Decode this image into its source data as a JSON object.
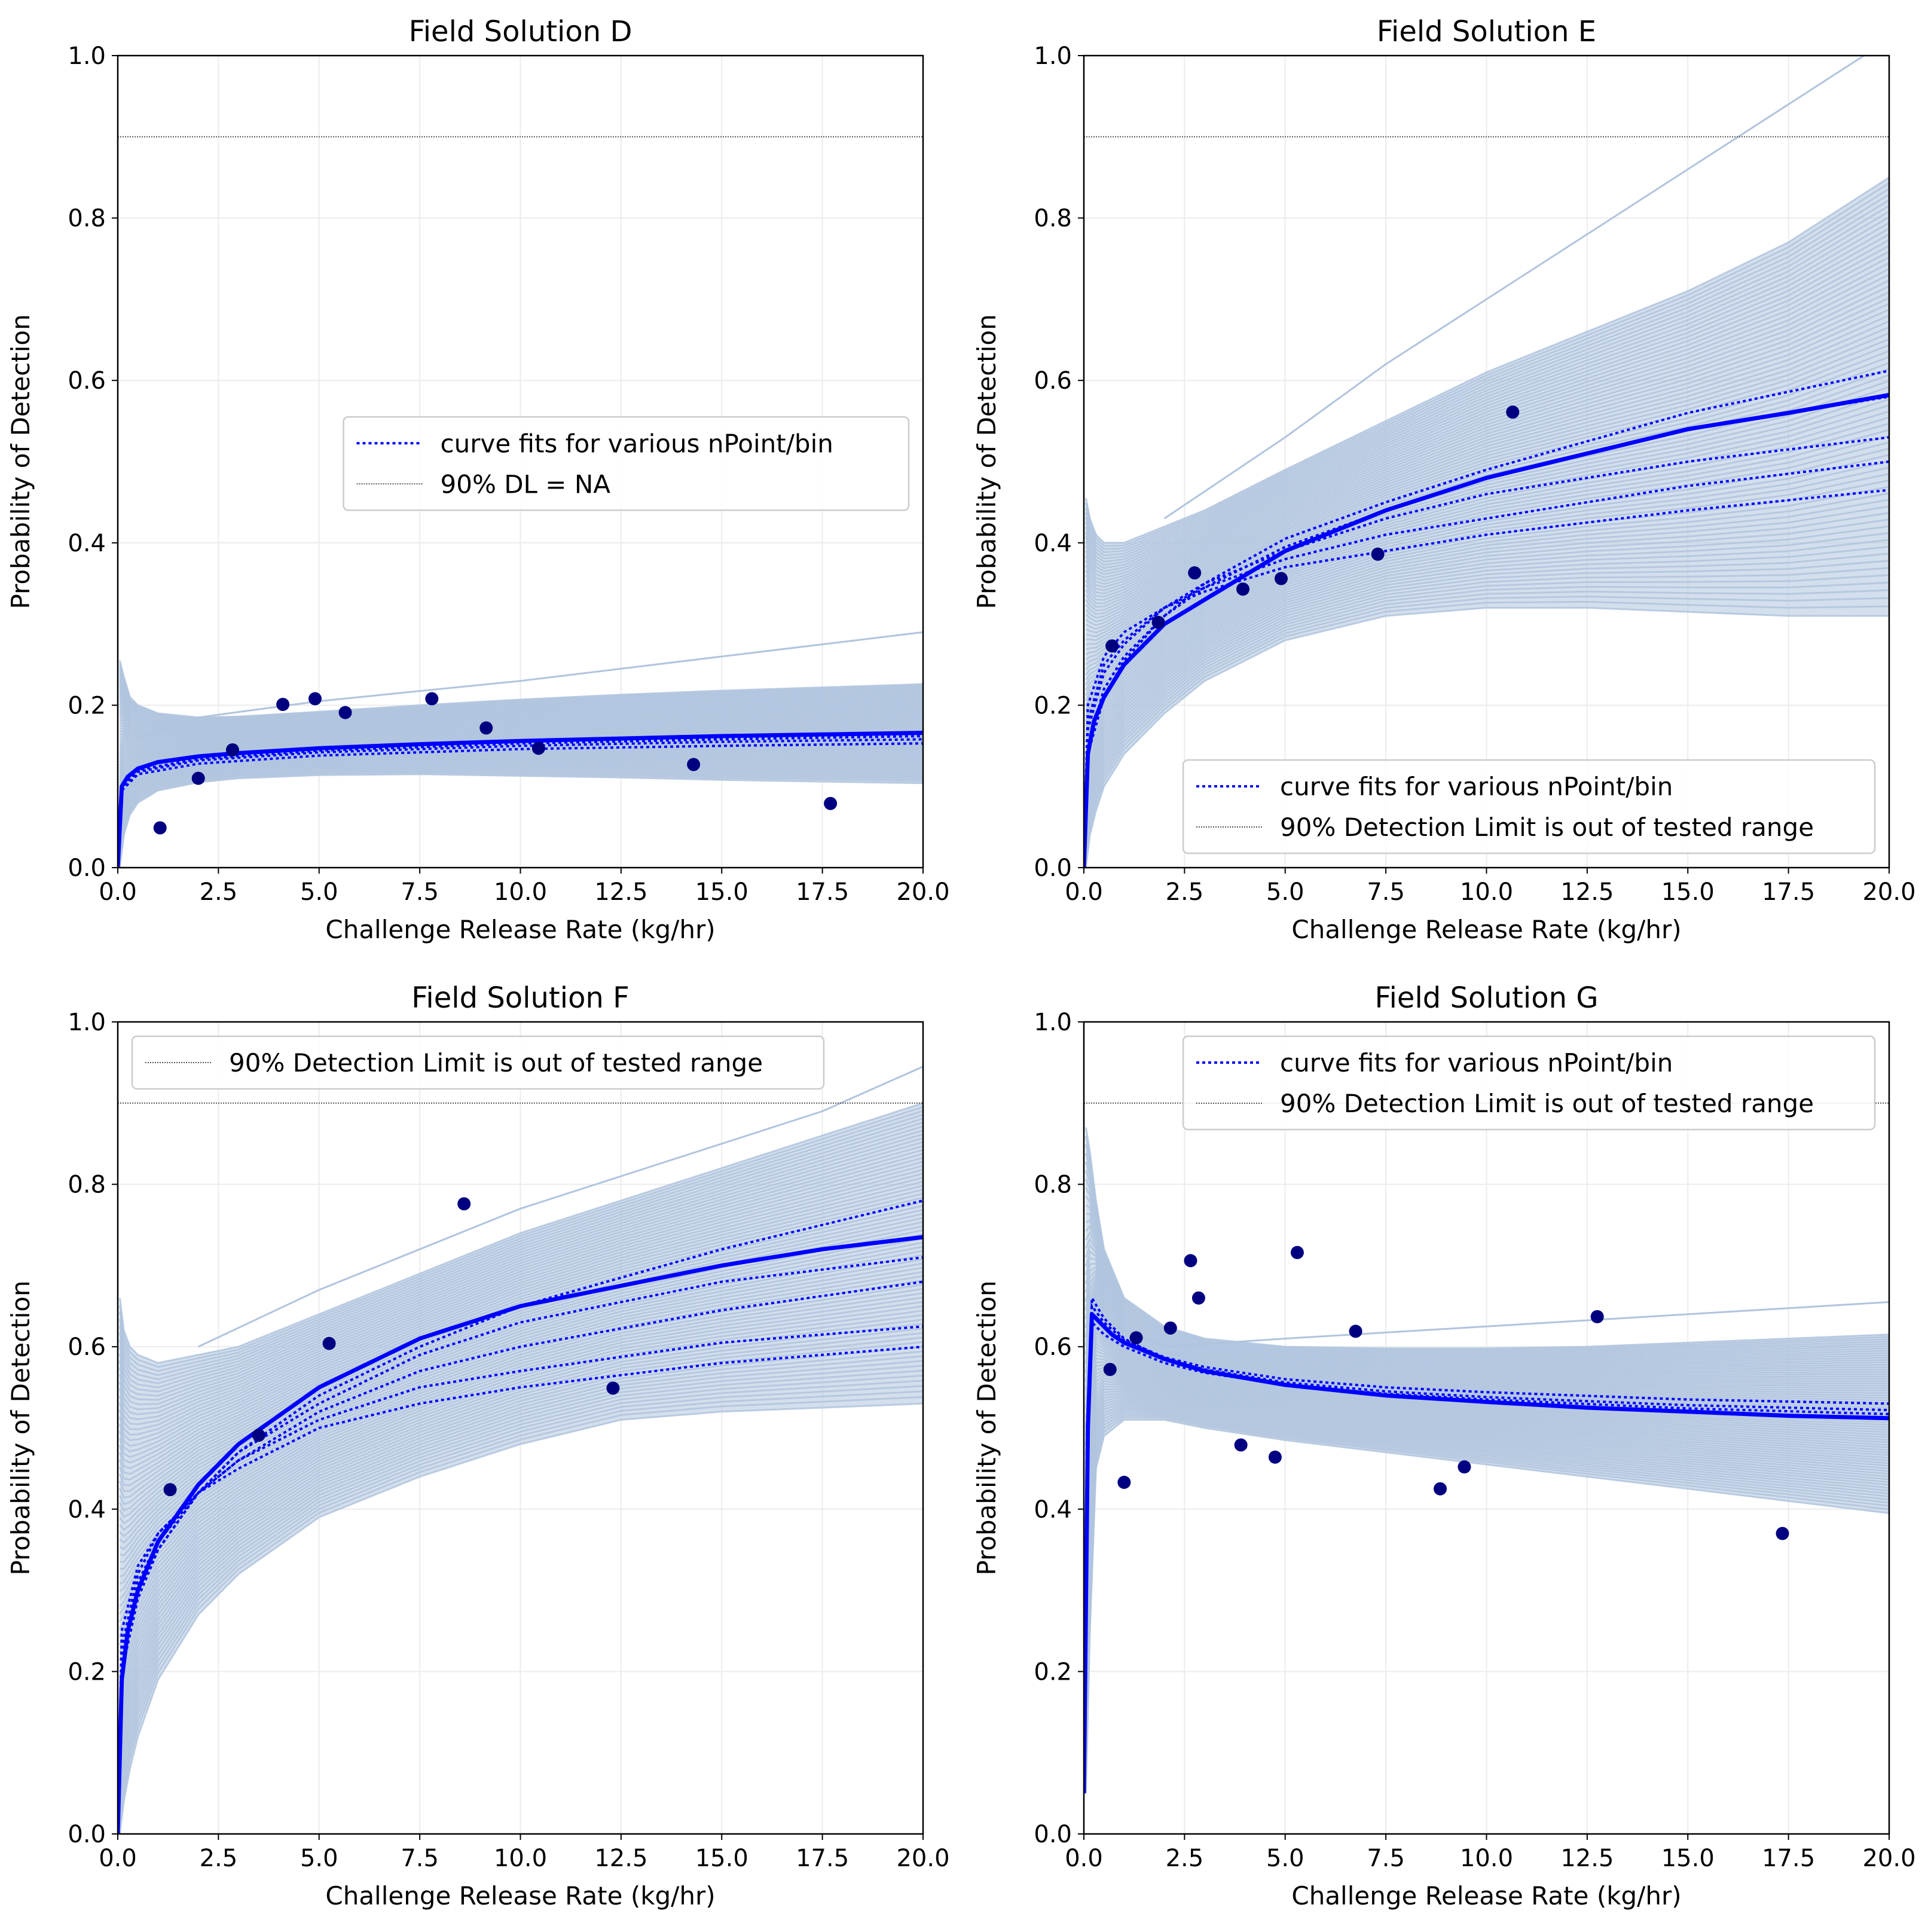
{
  "figure": {
    "layout": "2x2 grid of panels"
  },
  "colors": {
    "band": "#b0c4de",
    "curve": "#0000ff",
    "points": "#000080",
    "threshold": "#555555",
    "grid": "#ececec",
    "axis": "#000000"
  },
  "chart_data": [
    {
      "type": "line",
      "title": "Field Solution D",
      "xlabel": "Challenge Release Rate (kg/hr)",
      "ylabel": "Probability of Detection",
      "xlim": [
        0,
        20
      ],
      "ylim": [
        0,
        1
      ],
      "xticks": [
        "0.0",
        "2.5",
        "5.0",
        "7.5",
        "10.0",
        "12.5",
        "15.0",
        "17.5",
        "20.0"
      ],
      "yticks": [
        "0.0",
        "0.2",
        "0.4",
        "0.6",
        "0.8",
        "1.0"
      ],
      "grid": true,
      "threshold_y": 0.9,
      "legend": {
        "position": "center-right",
        "entries": [
          "curve fits for various nPoint/bin",
          "90% DL = NA"
        ],
        "styles": [
          "dotted-blue",
          "dotted-gray"
        ]
      },
      "points": {
        "x": [
          1.05,
          2.0,
          2.85,
          4.1,
          4.9,
          5.65,
          7.8,
          9.15,
          10.45,
          14.3,
          17.7
        ],
        "y": [
          0.049,
          0.11,
          0.145,
          0.201,
          0.208,
          0.191,
          0.208,
          0.172,
          0.147,
          0.127,
          0.079
        ]
      },
      "main_fit": {
        "x": [
          0.0,
          0.1,
          0.25,
          0.5,
          1,
          2,
          3,
          5,
          7.5,
          10,
          12.5,
          15,
          17.5,
          20
        ],
        "y": [
          0.0,
          0.1,
          0.112,
          0.122,
          0.13,
          0.137,
          0.141,
          0.147,
          0.152,
          0.156,
          0.159,
          0.162,
          0.164,
          0.166
        ]
      },
      "nbin_fits": [
        {
          "x": [
            0.0,
            0.1,
            0.5,
            2,
            5,
            10,
            15,
            20
          ],
          "y": [
            0.0,
            0.098,
            0.118,
            0.132,
            0.142,
            0.15,
            0.155,
            0.158
          ]
        },
        {
          "x": [
            0.0,
            0.1,
            0.5,
            2,
            5,
            10,
            15,
            20
          ],
          "y": [
            0.0,
            0.095,
            0.115,
            0.128,
            0.138,
            0.146,
            0.15,
            0.153
          ]
        },
        {
          "x": [
            0.0,
            0.1,
            0.5,
            2,
            5,
            10,
            15,
            20
          ],
          "y": [
            0.0,
            0.1,
            0.12,
            0.134,
            0.144,
            0.153,
            0.158,
            0.162
          ]
        }
      ],
      "band": {
        "x": [
          0.05,
          0.15,
          0.3,
          0.5,
          1,
          2,
          3,
          5,
          7.5,
          10,
          12.5,
          15,
          17.5,
          20
        ],
        "upper": [
          0.255,
          0.235,
          0.21,
          0.2,
          0.19,
          0.185,
          0.186,
          0.192,
          0.2,
          0.207,
          0.213,
          0.218,
          0.222,
          0.226
        ],
        "lower": [
          0.0,
          0.04,
          0.065,
          0.08,
          0.095,
          0.105,
          0.11,
          0.114,
          0.115,
          0.113,
          0.111,
          0.108,
          0.106,
          0.104
        ],
        "outlier": {
          "x": [
            0.5,
            2,
            5,
            10,
            15,
            20
          ],
          "y": [
            0.16,
            0.185,
            0.205,
            0.23,
            0.26,
            0.29
          ]
        }
      }
    },
    {
      "type": "line",
      "title": "Field Solution E",
      "xlabel": "Challenge Release Rate (kg/hr)",
      "ylabel": "Probability of Detection",
      "xlim": [
        0,
        20
      ],
      "ylim": [
        0,
        1
      ],
      "xticks": [
        "0.0",
        "2.5",
        "5.0",
        "7.5",
        "10.0",
        "12.5",
        "15.0",
        "17.5",
        "20.0"
      ],
      "yticks": [
        "0.0",
        "0.2",
        "0.4",
        "0.6",
        "0.8",
        "1.0"
      ],
      "grid": true,
      "threshold_y": 0.9,
      "legend": {
        "position": "lower-right",
        "entries": [
          "curve fits for various nPoint/bin",
          "90% Detection Limit is out of tested range"
        ],
        "styles": [
          "dotted-blue",
          "dotted-gray"
        ]
      },
      "points": {
        "x": [
          0.7,
          1.85,
          2.75,
          3.95,
          4.9,
          7.3,
          10.65
        ],
        "y": [
          0.273,
          0.302,
          0.363,
          0.343,
          0.356,
          0.386,
          0.561
        ]
      },
      "main_fit": {
        "x": [
          0.0,
          0.1,
          0.25,
          0.5,
          1,
          2,
          3,
          5,
          7.5,
          10,
          12.5,
          15,
          17.5,
          20
        ],
        "y": [
          0.0,
          0.14,
          0.18,
          0.21,
          0.25,
          0.3,
          0.33,
          0.39,
          0.44,
          0.48,
          0.51,
          0.54,
          0.56,
          0.582
        ]
      },
      "nbin_fits": [
        {
          "x": [
            0.0,
            0.1,
            0.5,
            1,
            2,
            3,
            5,
            7.5,
            10,
            15,
            20
          ],
          "y": [
            0.0,
            0.2,
            0.26,
            0.29,
            0.32,
            0.34,
            0.37,
            0.39,
            0.41,
            0.44,
            0.465
          ]
        },
        {
          "x": [
            0.0,
            0.1,
            0.5,
            1,
            2,
            3,
            5,
            7.5,
            10,
            15,
            20
          ],
          "y": [
            0.0,
            0.18,
            0.25,
            0.28,
            0.32,
            0.345,
            0.38,
            0.41,
            0.43,
            0.47,
            0.5
          ]
        },
        {
          "x": [
            0.0,
            0.1,
            0.5,
            1,
            2,
            3,
            5,
            7.5,
            10,
            15,
            20
          ],
          "y": [
            0.0,
            0.17,
            0.24,
            0.275,
            0.32,
            0.35,
            0.39,
            0.43,
            0.46,
            0.5,
            0.53
          ]
        },
        {
          "x": [
            0.0,
            0.1,
            0.5,
            1,
            2,
            3,
            5,
            7.5,
            10,
            15,
            20
          ],
          "y": [
            0.0,
            0.15,
            0.22,
            0.26,
            0.31,
            0.345,
            0.395,
            0.44,
            0.48,
            0.54,
            0.58
          ]
        },
        {
          "x": [
            0.0,
            0.1,
            0.5,
            1,
            2,
            3,
            5,
            7.5,
            10,
            15,
            20
          ],
          "y": [
            0.0,
            0.14,
            0.21,
            0.255,
            0.31,
            0.35,
            0.405,
            0.45,
            0.49,
            0.56,
            0.612
          ]
        }
      ],
      "band": {
        "x": [
          0.05,
          0.15,
          0.3,
          0.5,
          1,
          2,
          3,
          5,
          7.5,
          10,
          12.5,
          15,
          17.5,
          20
        ],
        "upper": [
          0.455,
          0.43,
          0.41,
          0.4,
          0.4,
          0.42,
          0.44,
          0.49,
          0.55,
          0.61,
          0.66,
          0.71,
          0.77,
          0.85
        ],
        "lower": [
          0.0,
          0.04,
          0.07,
          0.1,
          0.14,
          0.19,
          0.23,
          0.28,
          0.31,
          0.32,
          0.32,
          0.315,
          0.31,
          0.31
        ],
        "outlier": {
          "x": [
            2,
            5,
            7.5,
            10,
            12.5,
            15,
            17.5,
            20
          ],
          "y": [
            0.43,
            0.53,
            0.62,
            0.7,
            0.78,
            0.86,
            0.94,
            1.02
          ]
        }
      }
    },
    {
      "type": "line",
      "title": "Field Solution F",
      "xlabel": "Challenge Release Rate (kg/hr)",
      "ylabel": "Probability of Detection",
      "xlim": [
        0,
        20
      ],
      "ylim": [
        0,
        1
      ],
      "xticks": [
        "0.0",
        "2.5",
        "5.0",
        "7.5",
        "10.0",
        "12.5",
        "15.0",
        "17.5",
        "20.0"
      ],
      "yticks": [
        "0.0",
        "0.2",
        "0.4",
        "0.6",
        "0.8",
        "1.0"
      ],
      "grid": true,
      "threshold_y": 0.9,
      "legend": {
        "position": "upper-left",
        "entries": [
          "90% Detection Limit is out of tested range"
        ],
        "styles": [
          "dotted-gray"
        ]
      },
      "points": {
        "x": [
          1.3,
          3.5,
          5.25,
          8.6,
          12.3
        ],
        "y": [
          0.424,
          0.491,
          0.604,
          0.776,
          0.549
        ]
      },
      "main_fit": {
        "x": [
          0.0,
          0.1,
          0.25,
          0.5,
          1,
          2,
          3,
          5,
          7.5,
          10,
          12.5,
          15,
          17.5,
          20
        ],
        "y": [
          0.0,
          0.19,
          0.25,
          0.3,
          0.36,
          0.43,
          0.48,
          0.55,
          0.61,
          0.65,
          0.675,
          0.7,
          0.72,
          0.735
        ]
      },
      "nbin_fits": [
        {
          "x": [
            0.0,
            0.1,
            0.5,
            1,
            2,
            3,
            5,
            7.5,
            10,
            15,
            20
          ],
          "y": [
            0.0,
            0.25,
            0.33,
            0.37,
            0.42,
            0.45,
            0.5,
            0.53,
            0.55,
            0.58,
            0.6
          ]
        },
        {
          "x": [
            0.0,
            0.1,
            0.5,
            1,
            2,
            3,
            5,
            7.5,
            10,
            15,
            20
          ],
          "y": [
            0.0,
            0.23,
            0.32,
            0.37,
            0.42,
            0.46,
            0.51,
            0.55,
            0.57,
            0.605,
            0.625
          ]
        },
        {
          "x": [
            0.0,
            0.1,
            0.5,
            1,
            2,
            3,
            5,
            7.5,
            10,
            15,
            20
          ],
          "y": [
            0.0,
            0.22,
            0.31,
            0.36,
            0.42,
            0.46,
            0.52,
            0.57,
            0.6,
            0.645,
            0.68
          ]
        },
        {
          "x": [
            0.0,
            0.1,
            0.5,
            1,
            2,
            3,
            5,
            7.5,
            10,
            15,
            20
          ],
          "y": [
            0.0,
            0.21,
            0.3,
            0.35,
            0.42,
            0.47,
            0.53,
            0.59,
            0.63,
            0.68,
            0.71
          ]
        },
        {
          "x": [
            0.0,
            0.1,
            0.5,
            1,
            2,
            3,
            5,
            7.5,
            10,
            15,
            20
          ],
          "y": [
            0.0,
            0.2,
            0.29,
            0.35,
            0.42,
            0.47,
            0.54,
            0.6,
            0.65,
            0.72,
            0.78
          ]
        }
      ],
      "band": {
        "x": [
          0.05,
          0.15,
          0.3,
          0.5,
          1,
          2,
          3,
          5,
          7.5,
          10,
          12.5,
          15,
          17.5,
          20
        ],
        "upper": [
          0.66,
          0.62,
          0.6,
          0.59,
          0.58,
          0.59,
          0.6,
          0.64,
          0.69,
          0.74,
          0.78,
          0.82,
          0.86,
          0.9
        ],
        "lower": [
          0.0,
          0.04,
          0.08,
          0.12,
          0.19,
          0.27,
          0.32,
          0.39,
          0.44,
          0.48,
          0.51,
          0.52,
          0.525,
          0.53
        ],
        "outlier": {
          "x": [
            2,
            5,
            7.5,
            10,
            12.5,
            15,
            17.5,
            20
          ],
          "y": [
            0.6,
            0.67,
            0.72,
            0.77,
            0.81,
            0.85,
            0.89,
            0.945
          ]
        }
      }
    },
    {
      "type": "line",
      "title": "Field Solution G",
      "xlabel": "Challenge Release Rate (kg/hr)",
      "ylabel": "Probability of Detection",
      "xlim": [
        0,
        20
      ],
      "ylim": [
        0,
        1
      ],
      "xticks": [
        "0.0",
        "2.5",
        "5.0",
        "7.5",
        "10.0",
        "12.5",
        "15.0",
        "17.5",
        "20.0"
      ],
      "yticks": [
        "0.0",
        "0.2",
        "0.4",
        "0.6",
        "0.8",
        "1.0"
      ],
      "grid": true,
      "threshold_y": 0.9,
      "legend": {
        "position": "upper-right",
        "entries": [
          "curve fits for various nPoint/bin",
          "90% Detection Limit is out of tested range"
        ],
        "styles": [
          "dotted-blue",
          "dotted-gray"
        ]
      },
      "points": {
        "x": [
          0.65,
          1.0,
          1.3,
          2.15,
          2.65,
          2.85,
          3.9,
          4.75,
          5.3,
          6.75,
          8.85,
          9.45,
          12.75,
          17.35
        ],
        "y": [
          0.572,
          0.433,
          0.611,
          0.623,
          0.706,
          0.66,
          0.479,
          0.464,
          0.716,
          0.619,
          0.425,
          0.452,
          0.637,
          0.37
        ]
      },
      "main_fit": {
        "x": [
          0.0,
          0.1,
          0.2,
          0.4,
          0.7,
          1,
          2,
          3,
          5,
          7.5,
          10,
          12.5,
          15,
          17.5,
          20
        ],
        "y": [
          0.05,
          0.5,
          0.64,
          0.63,
          0.615,
          0.605,
          0.585,
          0.57,
          0.553,
          0.54,
          0.532,
          0.525,
          0.52,
          0.515,
          0.512
        ]
      },
      "nbin_fits": [
        {
          "x": [
            0.0,
            0.1,
            0.2,
            0.5,
            1,
            2,
            3,
            5,
            7.5,
            10,
            15,
            20
          ],
          "y": [
            0.05,
            0.52,
            0.66,
            0.635,
            0.61,
            0.585,
            0.572,
            0.556,
            0.545,
            0.538,
            0.528,
            0.522
          ]
        },
        {
          "x": [
            0.0,
            0.1,
            0.2,
            0.5,
            1,
            2,
            3,
            5,
            7.5,
            10,
            15,
            20
          ],
          "y": [
            0.05,
            0.51,
            0.65,
            0.63,
            0.608,
            0.587,
            0.575,
            0.56,
            0.55,
            0.544,
            0.535,
            0.53
          ]
        },
        {
          "x": [
            0.0,
            0.1,
            0.2,
            0.5,
            1,
            2,
            3,
            5,
            7.5,
            10,
            15,
            20
          ],
          "y": [
            0.05,
            0.5,
            0.63,
            0.615,
            0.6,
            0.58,
            0.568,
            0.553,
            0.542,
            0.535,
            0.524,
            0.517
          ]
        }
      ],
      "band": {
        "x": [
          0.05,
          0.15,
          0.3,
          0.5,
          1,
          2,
          3,
          5,
          7.5,
          10,
          12.5,
          15,
          17.5,
          20
        ],
        "upper": [
          0.87,
          0.84,
          0.78,
          0.72,
          0.66,
          0.625,
          0.61,
          0.6,
          0.598,
          0.598,
          0.6,
          0.605,
          0.61,
          0.615
        ],
        "lower": [
          0.05,
          0.25,
          0.45,
          0.49,
          0.51,
          0.51,
          0.5,
          0.485,
          0.47,
          0.455,
          0.44,
          0.425,
          0.41,
          0.395
        ],
        "outlier": {
          "x": [
            0.5,
            2,
            5,
            10,
            15,
            20
          ],
          "y": [
            0.63,
            0.6,
            0.61,
            0.625,
            0.64,
            0.655
          ]
        }
      }
    }
  ]
}
